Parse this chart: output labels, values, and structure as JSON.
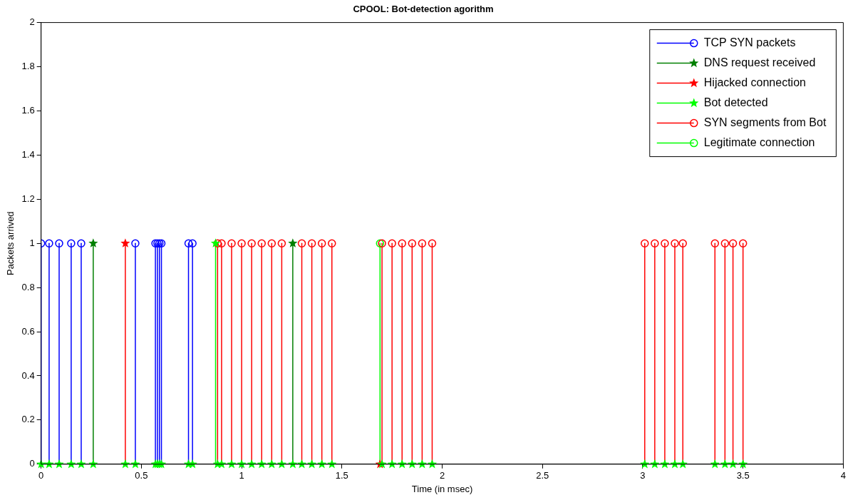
{
  "chart_data": {
    "type": "lollipop",
    "title": "CPOOL: Bot-detection agorithm",
    "xlabel": "Time (in msec)",
    "ylabel": "Packets arrived",
    "xlim": [
      0,
      4
    ],
    "xticks": [
      0,
      0.5,
      1,
      1.5,
      2,
      2.5,
      3,
      3.5,
      4
    ],
    "ylim": [
      0,
      2
    ],
    "yticks": [
      0,
      0.2,
      0.4,
      0.6,
      0.8,
      1,
      1.2,
      1.4,
      1.6,
      1.8,
      2
    ],
    "grid": false,
    "legend": "top right",
    "series": [
      {
        "name": "TCP SYN packets",
        "color": "#0000ff",
        "marker": "circle",
        "x": [
          0,
          0.04,
          0.09,
          0.15,
          0.2,
          0.47,
          0.57,
          0.58,
          0.59,
          0.6,
          0.735,
          0.755
        ],
        "values": [
          1,
          1,
          1,
          1,
          1,
          1,
          1,
          1,
          1,
          1,
          1,
          1
        ]
      },
      {
        "name": "DNS request received",
        "color": "#007f00",
        "marker": "star",
        "x": [
          0.26,
          1.255
        ],
        "values": [
          1,
          1
        ]
      },
      {
        "name": "Hijacked connection",
        "color": "#ff0000",
        "marker": "star",
        "x": [
          0.42,
          1.69
        ],
        "values": [
          1,
          0
        ]
      },
      {
        "name": "Bot detected",
        "color": "#00ff00",
        "marker": "star",
        "x": [
          0,
          0.04,
          0.09,
          0.15,
          0.2,
          0.26,
          0.42,
          0.47,
          0.57,
          0.58,
          0.59,
          0.6,
          0.735,
          0.755,
          0.87,
          0.88,
          0.9,
          0.95,
          1.0,
          1.05,
          1.1,
          1.15,
          1.2,
          1.255,
          1.3,
          1.35,
          1.4,
          1.45,
          1.7,
          1.75,
          1.8,
          1.85,
          1.9,
          1.95,
          3.01,
          3.06,
          3.11,
          3.16,
          3.2,
          3.36,
          3.41,
          3.45,
          3.5
        ],
        "values": [
          0,
          0,
          0,
          0,
          0,
          0,
          0,
          0,
          0,
          0,
          0,
          0,
          0,
          0,
          1,
          0,
          0,
          0,
          0,
          0,
          0,
          0,
          0,
          0,
          0,
          0,
          0,
          0,
          0,
          0,
          0,
          0,
          0,
          0,
          0,
          0,
          0,
          0,
          0,
          0,
          0,
          0,
          0
        ]
      },
      {
        "name": "SYN segments from Bot",
        "color": "#ff0000",
        "marker": "circle",
        "x": [
          0.88,
          0.9,
          0.95,
          1.0,
          1.05,
          1.1,
          1.15,
          1.2,
          1.3,
          1.35,
          1.4,
          1.45,
          1.7,
          1.75,
          1.8,
          1.85,
          1.9,
          1.95,
          3.01,
          3.06,
          3.11,
          3.16,
          3.2,
          3.36,
          3.41,
          3.45,
          3.5
        ],
        "values": [
          1,
          1,
          1,
          1,
          1,
          1,
          1,
          1,
          1,
          1,
          1,
          1,
          1,
          1,
          1,
          1,
          1,
          1,
          1,
          1,
          1,
          1,
          1,
          1,
          1,
          1,
          1
        ]
      },
      {
        "name": "Legitimate connection",
        "color": "#00ff00",
        "marker": "circle",
        "x": [
          1.69
        ],
        "values": [
          1
        ]
      }
    ]
  }
}
